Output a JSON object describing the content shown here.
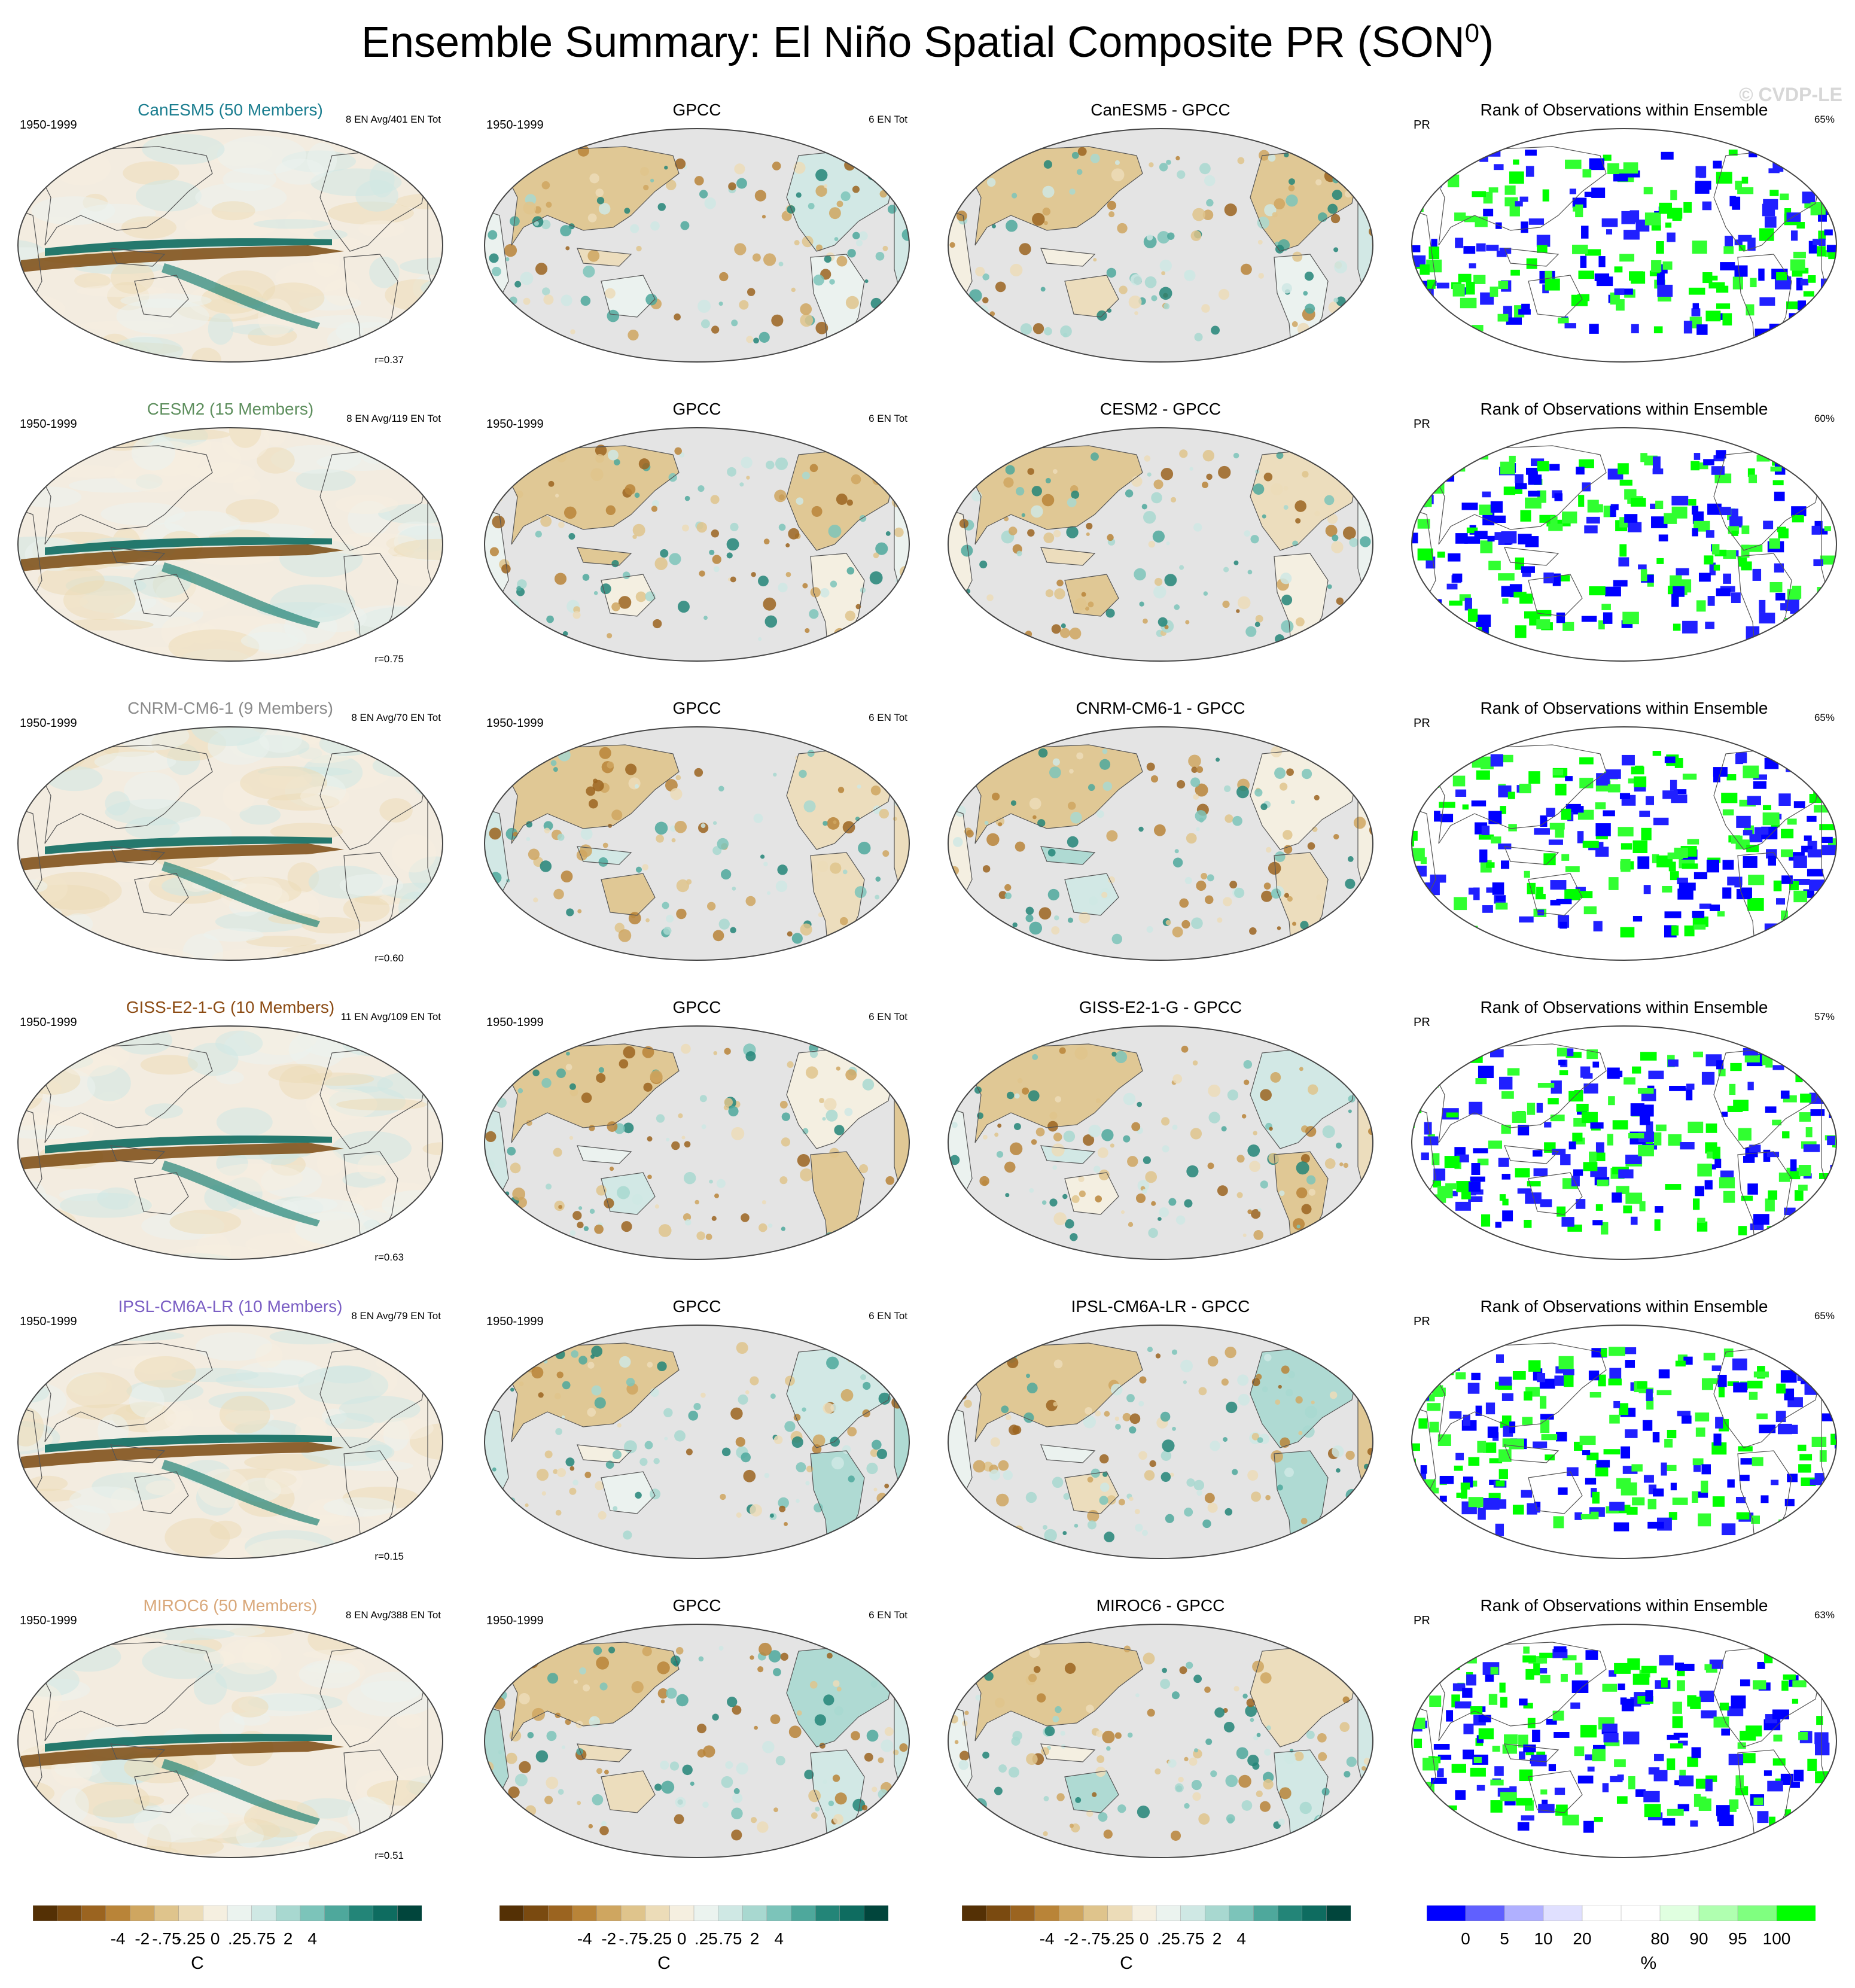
{
  "title_main": "Ensemble Summary: El Niño Spatial Composite PR (SON",
  "title_sup": "0",
  "title_end": ")",
  "watermark": "© CVDP-LE",
  "rows": [
    {
      "model_title": "CanESM5 (50 Members)",
      "model_color": "#1a7d8f",
      "period": "1950-1999",
      "en_info": "8 EN Avg/401 EN Tot",
      "corr": "r=0.37",
      "obs_title": "GPCC",
      "obs_period": "1950-1999",
      "obs_en": "6 EN Tot",
      "diff_title": "CanESM5 - GPCC",
      "rank_title": "Rank of Observations within Ensemble",
      "rank_var": "PR",
      "rank_pct": "65%"
    },
    {
      "model_title": "CESM2 (15 Members)",
      "model_color": "#5e8f5e",
      "period": "1950-1999",
      "en_info": "8 EN Avg/119 EN Tot",
      "corr": "r=0.75",
      "obs_title": "GPCC",
      "obs_period": "1950-1999",
      "obs_en": "6 EN Tot",
      "diff_title": "CESM2 - GPCC",
      "rank_title": "Rank of Observations within Ensemble",
      "rank_var": "PR",
      "rank_pct": "60%"
    },
    {
      "model_title": "CNRM-CM6-1 (9 Members)",
      "model_color": "#8a8a8a",
      "period": "1950-1999",
      "en_info": "8 EN Avg/70 EN Tot",
      "corr": "r=0.60",
      "obs_title": "GPCC",
      "obs_period": "1950-1999",
      "obs_en": "6 EN Tot",
      "diff_title": "CNRM-CM6-1 - GPCC",
      "rank_title": "Rank of Observations within Ensemble",
      "rank_var": "PR",
      "rank_pct": "65%"
    },
    {
      "model_title": "GISS-E2-1-G (10 Members)",
      "model_color": "#8b4a12",
      "period": "1950-1999",
      "en_info": "11 EN Avg/109 EN Tot",
      "corr": "r=0.63",
      "obs_title": "GPCC",
      "obs_period": "1950-1999",
      "obs_en": "6 EN Tot",
      "diff_title": "GISS-E2-1-G - GPCC",
      "rank_title": "Rank of Observations within Ensemble",
      "rank_var": "PR",
      "rank_pct": "57%"
    },
    {
      "model_title": "IPSL-CM6A-LR (10 Members)",
      "model_color": "#7b5fc4",
      "period": "1950-1999",
      "en_info": "8 EN Avg/79 EN Tot",
      "corr": "r=0.15",
      "obs_title": "GPCC",
      "obs_period": "1950-1999",
      "obs_en": "6 EN Tot",
      "diff_title": "IPSL-CM6A-LR - GPCC",
      "rank_title": "Rank of Observations within Ensemble",
      "rank_var": "PR",
      "rank_pct": "65%"
    },
    {
      "model_title": "MIROC6 (50 Members)",
      "model_color": "#d9a87a",
      "period": "1950-1999",
      "en_info": "8 EN Avg/388 EN Tot",
      "corr": "r=0.51",
      "obs_title": "GPCC",
      "obs_period": "1950-1999",
      "obs_en": "6 EN Tot",
      "diff_title": "MIROC6 - GPCC",
      "rank_title": "Rank of Observations within Ensemble",
      "rank_var": "PR",
      "rank_pct": "63%"
    }
  ],
  "colorbars": {
    "anomaly": {
      "colors": [
        "#543005",
        "#7a4a10",
        "#9b6420",
        "#b98438",
        "#cfa660",
        "#dfc48c",
        "#ecdcb8",
        "#f5efe0",
        "#ebf3ef",
        "#cfe8e4",
        "#a8d8d0",
        "#7cc4ba",
        "#4ea89c",
        "#238578",
        "#0e6c60",
        "#01453c"
      ],
      "tick_labels": [
        "-4",
        "-2",
        "-.75",
        "-.25",
        "0",
        ".25",
        ".75",
        "2",
        "4"
      ],
      "unit": "C"
    },
    "rank": {
      "colors": [
        "#0000ff",
        "#6060ff",
        "#b0b0ff",
        "#e0e0ff",
        "#ffffff",
        "#ffffff",
        "#e0ffe0",
        "#b0ffb0",
        "#80ff80",
        "#00ff00"
      ],
      "tick_labels": [
        "0",
        "5",
        "10",
        "20",
        "80",
        "90",
        "95",
        "100"
      ],
      "unit": "%"
    }
  },
  "chart_data": {
    "type": "heatmap",
    "title": "Ensemble Summary: El Niño Spatial Composite PR (SON0)",
    "projection": "global map, Pacific-centered",
    "rows": [
      "CanESM5",
      "CESM2",
      "CNRM-CM6-1",
      "GISS-E2-1-G",
      "IPSL-CM6A-LR",
      "MIROC6"
    ],
    "columns": [
      "Model ensemble mean",
      "GPCC",
      "Model - GPCC",
      "Rank of Observations within Ensemble"
    ],
    "pattern_correlations": [
      0.37,
      0.75,
      0.6,
      0.63,
      0.15,
      0.51
    ],
    "rank_percent_coverage": [
      65,
      60,
      65,
      57,
      65,
      63
    ],
    "en_events_avg": [
      8,
      8,
      8,
      11,
      8,
      8
    ],
    "en_events_total": [
      401,
      119,
      70,
      109,
      79,
      388
    ],
    "obs_en_events": 6,
    "anomaly_levels": [
      "-4",
      "-2",
      "-.75",
      "-.25",
      "0",
      ".25",
      ".75",
      "2",
      "4"
    ],
    "rank_levels": [
      "0",
      "5",
      "10",
      "20",
      "80",
      "90",
      "95",
      "100"
    ]
  }
}
